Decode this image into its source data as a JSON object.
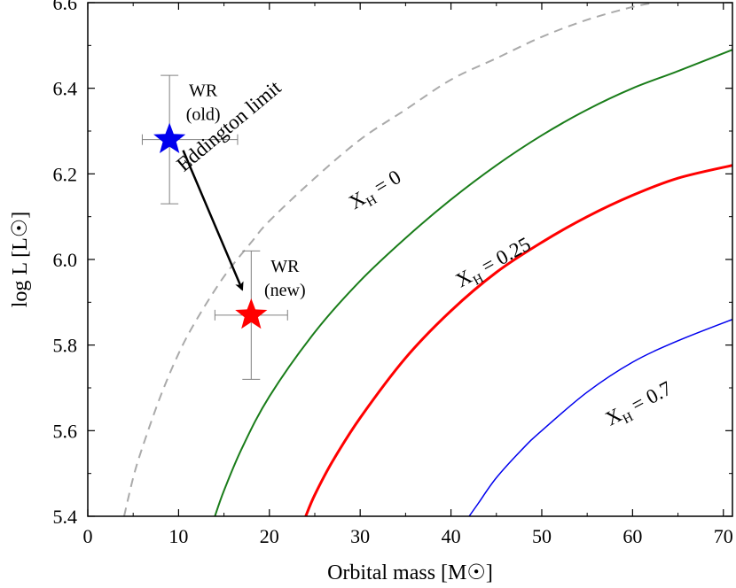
{
  "chart_data": {
    "type": "line",
    "xlabel": "Orbital mass [M☉]",
    "ylabel": "log L [L☉]",
    "xlim": [
      0,
      71
    ],
    "ylim": [
      5.4,
      6.6
    ],
    "xticks": [
      0,
      10,
      20,
      30,
      40,
      50,
      60,
      70
    ],
    "yticks": [
      5.4,
      5.6,
      5.8,
      6.0,
      6.2,
      6.4,
      6.6
    ],
    "xtick_labels": [
      "0",
      "10",
      "20",
      "30",
      "40",
      "50",
      "60",
      "70"
    ],
    "ytick_labels": [
      "5.4",
      "5.6",
      "5.8",
      "6.0",
      "6.2",
      "6.4",
      "6.6"
    ],
    "series": [
      {
        "name": "Eddington limit",
        "color": "#aaaaaa",
        "style": "dashed",
        "x": [
          4.0,
          5.0,
          6.0,
          8.0,
          10.0,
          12.0,
          15.0,
          18.0,
          20.0,
          25.0,
          30.0,
          35.0,
          40.0,
          45.0,
          50.0,
          55.0,
          60.0,
          62.5
        ],
        "y": [
          5.4,
          5.49,
          5.56,
          5.68,
          5.78,
          5.86,
          5.96,
          6.04,
          6.09,
          6.19,
          6.28,
          6.35,
          6.42,
          6.47,
          6.52,
          6.56,
          6.59,
          6.6
        ]
      },
      {
        "name": "X_H = 0",
        "color": "#1a7d1a",
        "style": "solid",
        "x": [
          14.0,
          15.0,
          17.0,
          20.0,
          25.0,
          30.0,
          35.0,
          40.0,
          45.0,
          50.0,
          55.0,
          60.0,
          65.0,
          71.0
        ],
        "y": [
          5.4,
          5.46,
          5.56,
          5.68,
          5.83,
          5.95,
          6.05,
          6.14,
          6.22,
          6.29,
          6.35,
          6.4,
          6.44,
          6.49
        ]
      },
      {
        "name": "X_H = 0.25",
        "color": "#ff0000",
        "style": "solid",
        "x": [
          24.0,
          25.0,
          27.0,
          30.0,
          35.0,
          40.0,
          45.0,
          50.0,
          55.0,
          60.0,
          65.0,
          71.0
        ],
        "y": [
          5.4,
          5.45,
          5.53,
          5.63,
          5.77,
          5.88,
          5.97,
          6.04,
          6.1,
          6.15,
          6.19,
          6.22
        ]
      },
      {
        "name": "X_H = 0.7",
        "color": "#0000ee",
        "style": "solid",
        "x": [
          42.0,
          43.0,
          45.0,
          48.0,
          50.0,
          55.0,
          60.0,
          65.0,
          71.0
        ],
        "y": [
          5.4,
          5.43,
          5.49,
          5.56,
          5.6,
          5.69,
          5.76,
          5.81,
          5.86
        ]
      }
    ],
    "points": [
      {
        "label": "WR (old)",
        "line1": "WR",
        "line2": "(old)",
        "x": 9.0,
        "y": 6.28,
        "xerr": [
          3.0,
          7.5
        ],
        "yerr": [
          0.15,
          0.15
        ],
        "color": "#0000ee"
      },
      {
        "label": "WR (new)",
        "line1": "WR",
        "line2": "(new)",
        "x": 18.0,
        "y": 5.87,
        "xerr": [
          4.0,
          4.0
        ],
        "yerr": [
          0.15,
          0.15
        ],
        "color": "#ff0000"
      }
    ],
    "arrow": {
      "from": [
        10.5,
        6.255
      ],
      "to": [
        17.0,
        5.93
      ]
    },
    "annotations": [
      {
        "text": "Eddington limit",
        "x": 16.0,
        "y": 6.3,
        "rotation": -40
      },
      {
        "text": "X",
        "sub": "H",
        "rest": " = 0",
        "x": 32.0,
        "y": 6.15,
        "rotation": -31
      },
      {
        "text": "X",
        "sub": "H",
        "rest": " = 0.25",
        "x": 45.0,
        "y": 5.98,
        "rotation": -29
      },
      {
        "text": "X",
        "sub": "H",
        "rest": " = 0.7",
        "x": 61.0,
        "y": 5.65,
        "rotation": -28
      }
    ],
    "grid": false
  }
}
